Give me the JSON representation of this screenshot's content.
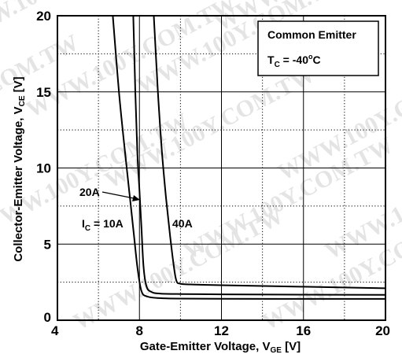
{
  "chart_data": {
    "type": "line",
    "xlabel_main": "Gate-Emitter Voltage, V",
    "xlabel_sub": "GE",
    "xlabel_unit": " [V]",
    "ylabel_main": "Collector-Emitter Voltage, V",
    "ylabel_sub": "CE",
    "ylabel_unit": " [V]",
    "xlim": [
      4,
      20
    ],
    "ylim": [
      0,
      20
    ],
    "x_ticks": [
      4,
      8,
      12,
      16,
      20
    ],
    "y_ticks": [
      0,
      5,
      10,
      15,
      20
    ],
    "x_minor_grid": [
      6,
      10,
      14,
      18
    ],
    "y_minor_grid": [
      2.5,
      7.5,
      12.5,
      17.5
    ],
    "grid": true,
    "legend_box": {
      "line1": "Common Emitter",
      "line2_main": "T",
      "line2_sub": "C",
      "line2_rest": " = -40",
      "line2_deg": "o",
      "line2_unit": "C"
    },
    "series": [
      {
        "name": "10A",
        "x": [
          6.7,
          7.0,
          7.3,
          7.5,
          7.7,
          7.9,
          8.1,
          8.4,
          9.0,
          10.0,
          12.0,
          16.0,
          20.0
        ],
        "y": [
          20.0,
          15.0,
          11.0,
          8.5,
          6.0,
          3.5,
          1.9,
          1.55,
          1.45,
          1.42,
          1.41,
          1.4,
          1.4
        ]
      },
      {
        "name": "20A",
        "x": [
          7.7,
          7.8,
          7.9,
          8.0,
          8.1,
          8.2,
          8.35,
          8.6,
          9.0,
          10.0,
          12.0,
          16.0,
          20.0
        ],
        "y": [
          20.0,
          15.0,
          11.0,
          8.5,
          6.0,
          3.5,
          2.2,
          1.85,
          1.75,
          1.72,
          1.7,
          1.68,
          1.67
        ]
      },
      {
        "name": "40A",
        "x": [
          8.7,
          8.9,
          9.1,
          9.3,
          9.5,
          9.65,
          9.8,
          10.0,
          10.5,
          12.0,
          16.0,
          20.0
        ],
        "y": [
          20.0,
          15.0,
          11.0,
          8.0,
          5.5,
          3.8,
          2.6,
          2.4,
          2.35,
          2.3,
          2.2,
          2.1
        ]
      }
    ],
    "annotations": {
      "ic_main": "I",
      "ic_sub": "C",
      "ic_rest": " = 10A",
      "label_20a": "20A",
      "label_40a": "40A"
    },
    "watermark_text": "WWW.100Y.COM.TW"
  }
}
